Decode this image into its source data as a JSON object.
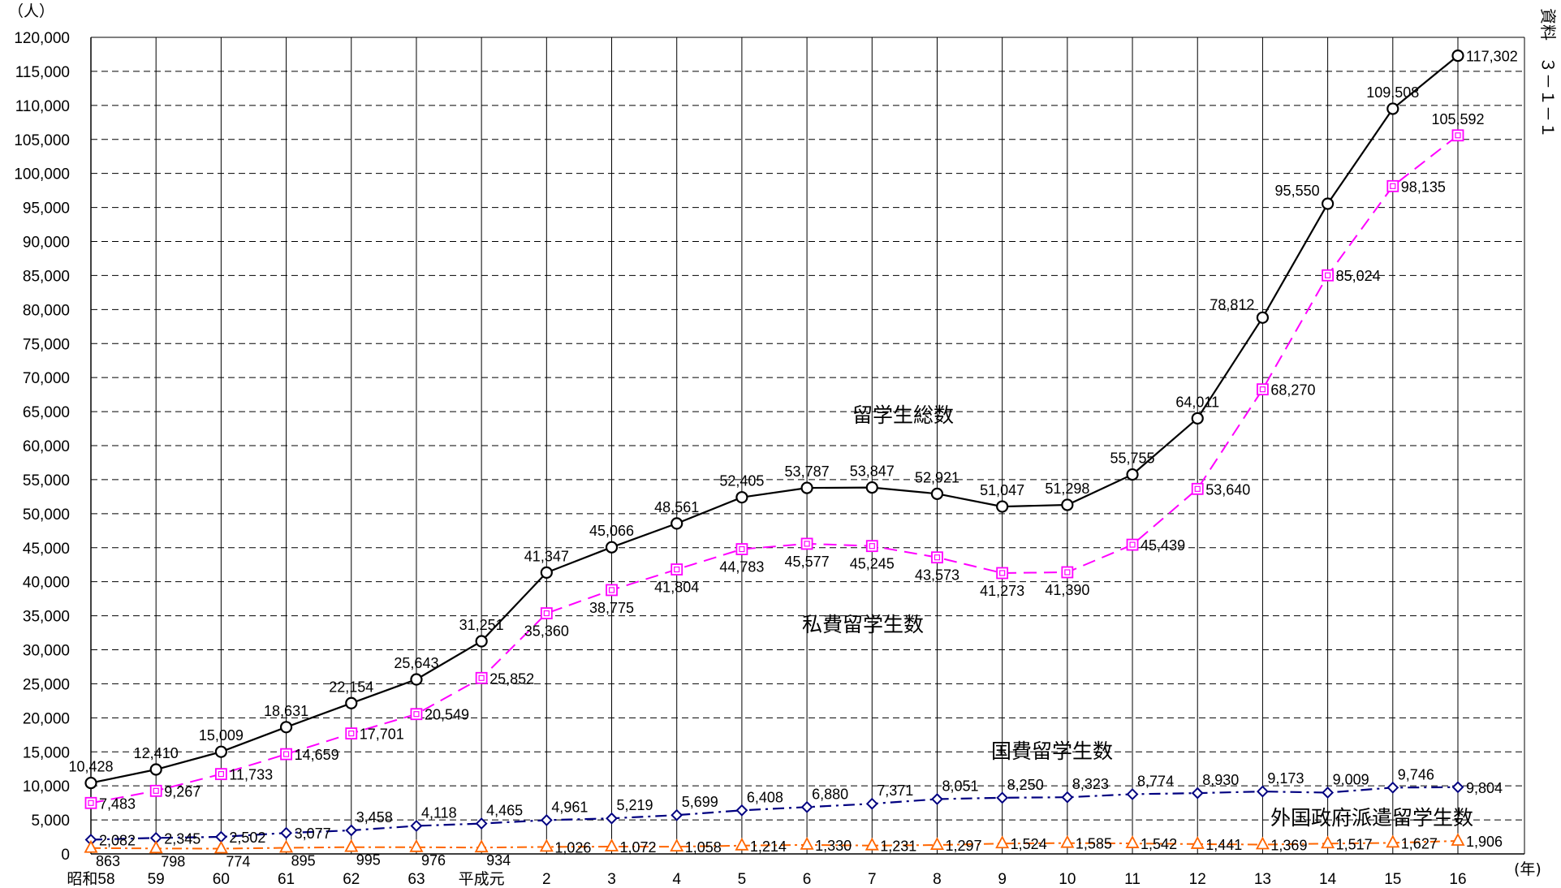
{
  "chart_data": {
    "type": "line",
    "title": "",
    "y_unit": "（人）",
    "x_unit": "(年)",
    "ylim": [
      0,
      120000
    ],
    "y_step": 5000,
    "grid": true,
    "categories": [
      "昭和58",
      "59",
      "60",
      "61",
      "62",
      "63",
      "平成元",
      "2",
      "3",
      "4",
      "5",
      "6",
      "7",
      "8",
      "9",
      "10",
      "11",
      "12",
      "13",
      "14",
      "15",
      "16"
    ],
    "series": [
      {
        "name": "留学生総数",
        "color": "#000000",
        "marker": "circle",
        "dash": "",
        "values": [
          10428,
          12410,
          15009,
          18631,
          22154,
          25643,
          31251,
          41347,
          45066,
          48561,
          52405,
          53787,
          53847,
          52921,
          51047,
          51298,
          55755,
          64011,
          78812,
          95550,
          109508,
          117302
        ]
      },
      {
        "name": "私費留学生数",
        "color": "#ff00ff",
        "marker": "square",
        "dash": "16,9",
        "values": [
          7483,
          9267,
          11733,
          14659,
          17701,
          20549,
          25852,
          35360,
          38775,
          41804,
          44783,
          45577,
          45245,
          43573,
          41273,
          41390,
          45439,
          53640,
          68270,
          85024,
          98135,
          105592
        ]
      },
      {
        "name": "国費留学生数",
        "color": "#000080",
        "marker": "diamond",
        "dash": "14,6,3,6",
        "values": [
          2082,
          2345,
          2502,
          3077,
          3458,
          4118,
          4465,
          4961,
          5219,
          5699,
          6408,
          6880,
          7371,
          8051,
          8250,
          8323,
          8774,
          8930,
          9173,
          9009,
          9746,
          9804
        ]
      },
      {
        "name": "外国政府派遣留学生数",
        "color": "#ff6600",
        "marker": "triangle",
        "dash": "12,5,3,5",
        "values": [
          863,
          798,
          774,
          895,
          995,
          976,
          934,
          1026,
          1072,
          1058,
          1214,
          1330,
          1231,
          1297,
          1524,
          1585,
          1542,
          1441,
          1369,
          1517,
          1627,
          1906
        ]
      }
    ]
  },
  "side_text": "資料　３－１－１"
}
